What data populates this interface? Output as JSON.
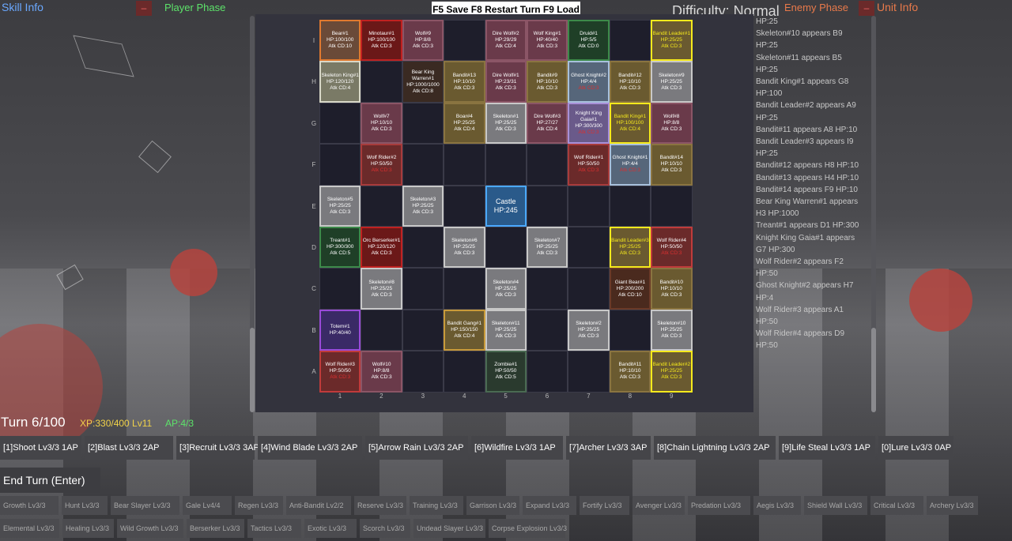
{
  "header": {
    "skill_info": "Skill Info",
    "player_phase": "Player Phase",
    "save_bar": "F5 Save F8 Restart Turn F9 Load",
    "difficulty": "Difficulty: Normal",
    "enemy_phase": "Enemy Phase",
    "unit_info": "Unit Info",
    "minimize_glyph": "–"
  },
  "board": {
    "rows": [
      "I",
      "H",
      "G",
      "F",
      "E",
      "D",
      "C",
      "B",
      "A"
    ],
    "cols": [
      "1",
      "2",
      "3",
      "4",
      "5",
      "6",
      "7",
      "8",
      "9"
    ],
    "cells": [
      {
        "id": "I1",
        "name": "Bear#1",
        "hp": "HP:100/100",
        "atk": "Atk CD:10",
        "bg": "#6a4a38",
        "border": "#e0792f"
      },
      {
        "id": "I2",
        "name": "Minotaur#1",
        "hp": "HP:100/100",
        "atk": "Atk CD:3",
        "bg": "#6b1818",
        "border": "#c02121"
      },
      {
        "id": "I3",
        "name": "Wolf#9",
        "hp": "HP:8/8",
        "atk": "Atk CD:3",
        "bg": "#6a3a4a",
        "border": "#8b5566"
      },
      {
        "id": "I4",
        "name": "",
        "hp": "",
        "atk": "",
        "bg": "#1e1e2b",
        "border": "#3a3a48"
      },
      {
        "id": "I5",
        "name": "Dire Wolf#2",
        "hp": "HP:29/29",
        "atk": "Atk CD:4",
        "bg": "#6a3a4a",
        "border": "#8b5566"
      },
      {
        "id": "I6",
        "name": "Wolf King#1",
        "hp": "HP:40/40",
        "atk": "Atk CD:3",
        "bg": "#6a3a4a",
        "border": "#8b5566"
      },
      {
        "id": "I7",
        "name": "Druid#1",
        "hp": "HP:5/5",
        "atk": "Atk CD:0",
        "bg": "#1f3f27",
        "border": "#3d8a4a"
      },
      {
        "id": "I8",
        "name": "",
        "hp": "",
        "atk": "",
        "bg": "#1e1e2b",
        "border": "#3a3a48"
      },
      {
        "id": "I9",
        "name": "Bandit Leader#1",
        "hp": "HP:25/25",
        "atk": "Atk CD:3",
        "bg": "#6a5a30",
        "border": "#f6ea1c",
        "yellow": true
      },
      {
        "id": "H1",
        "name": "Skeleton King#1",
        "hp": "HP:120/120",
        "atk": "Atk CD:4",
        "bg": "#7a7a66",
        "border": "#d8d8c8"
      },
      {
        "id": "H2",
        "name": "",
        "hp": "",
        "atk": "",
        "bg": "#1e1e2b",
        "border": "#3a3a48"
      },
      {
        "id": "H3",
        "name": "Bear King Warren#1",
        "hp": "HP:1000/1000",
        "atk": "Atk CD:8",
        "bg": "#3a2a22",
        "border": "#3a3a48"
      },
      {
        "id": "H4",
        "name": "Bandit#13",
        "hp": "HP:10/10",
        "atk": "Atk CD:3",
        "bg": "#6a5a30",
        "border": "#8a7440"
      },
      {
        "id": "H5",
        "name": "Dire Wolf#1",
        "hp": "HP:23/31",
        "atk": "Atk CD:3",
        "bg": "#6a3a4a",
        "border": "#8b5566"
      },
      {
        "id": "H6",
        "name": "Bandit#9",
        "hp": "HP:10/10",
        "atk": "Atk CD:3",
        "bg": "#6a5a30",
        "border": "#8a7440"
      },
      {
        "id": "H7",
        "name": "Ghost Knight#2",
        "hp": "HP:4/4",
        "atk": "",
        "bg": "#56667a",
        "border": "#a8c0dc",
        "red": "Atk CD:3"
      },
      {
        "id": "H8",
        "name": "Bandit#12",
        "hp": "HP:10/10",
        "atk": "Atk CD:3",
        "bg": "#6a5a30",
        "border": "#8a7440"
      },
      {
        "id": "H9",
        "name": "Skeleton#9",
        "hp": "HP:25/25",
        "atk": "Atk CD:3",
        "bg": "#7a7a7e",
        "border": "#c8c8c8"
      },
      {
        "id": "G1",
        "name": "",
        "hp": "",
        "atk": "",
        "bg": "#1e1e2b",
        "border": "#3a3a48"
      },
      {
        "id": "G2",
        "name": "Wolf#7",
        "hp": "HP:10/10",
        "atk": "Atk CD:3",
        "bg": "#6a3a4a",
        "border": "#8b5566"
      },
      {
        "id": "G3",
        "name": "",
        "hp": "",
        "atk": "",
        "bg": "#1e1e2b",
        "border": "#3a3a48"
      },
      {
        "id": "G4",
        "name": "Boar#4",
        "hp": "HP:25/25",
        "atk": "Atk CD:4",
        "bg": "#6a5a30",
        "border": "#8a7440"
      },
      {
        "id": "G5",
        "name": "Skeleton#1",
        "hp": "HP:25/25",
        "atk": "Atk CD:3",
        "bg": "#7a7a7e",
        "border": "#c8c8c8"
      },
      {
        "id": "G6",
        "name": "Dire Wolf#3",
        "hp": "HP:27/27",
        "atk": "Atk CD:4",
        "bg": "#6a3a4a",
        "border": "#8b5566"
      },
      {
        "id": "G7",
        "name": "Knight King Gaia#1",
        "hp": "HP:300/300",
        "atk": "",
        "bg": "#6a5a8a",
        "border": "#a890d8",
        "red": "Atk CD:3"
      },
      {
        "id": "G8",
        "name": "Bandit King#1",
        "hp": "HP:100/100",
        "atk": "Atk CD:4",
        "bg": "#6a5a30",
        "border": "#f6ea1c",
        "yellow": true
      },
      {
        "id": "G9",
        "name": "Wolf#8",
        "hp": "HP:8/8",
        "atk": "Atk CD:3",
        "bg": "#6a3a4a",
        "border": "#8b5566"
      },
      {
        "id": "F1",
        "name": "",
        "hp": "",
        "atk": "",
        "bg": "#1e1e2b",
        "border": "#3a3a48"
      },
      {
        "id": "F2",
        "name": "Wolf Rider#2",
        "hp": "HP:50/50",
        "atk": "",
        "bg": "#6b2a2a",
        "border": "#a83b3b",
        "red": "Atk CD:3"
      },
      {
        "id": "F3",
        "name": "",
        "hp": "",
        "atk": "",
        "bg": "#1e1e2b",
        "border": "#3a3a48"
      },
      {
        "id": "F4",
        "name": "",
        "hp": "",
        "atk": "",
        "bg": "#1e1e2b",
        "border": "#3a3a48"
      },
      {
        "id": "F5",
        "name": "",
        "hp": "",
        "atk": "",
        "bg": "#1e1e2b",
        "border": "#3a3a48"
      },
      {
        "id": "F6",
        "name": "",
        "hp": "",
        "atk": "",
        "bg": "#1e1e2b",
        "border": "#3a3a48"
      },
      {
        "id": "F7",
        "name": "Wolf Rider#1",
        "hp": "HP:50/50",
        "atk": "",
        "bg": "#6b2a2a",
        "border": "#a83b3b",
        "red": "Atk CD:3"
      },
      {
        "id": "F8",
        "name": "Ghost Knight#1",
        "hp": "HP:4/4",
        "atk": "",
        "bg": "#56667a",
        "border": "#a8c0dc",
        "red": "Atk CD:3"
      },
      {
        "id": "F9",
        "name": "Bandit#14",
        "hp": "HP:10/10",
        "atk": "Atk CD:3",
        "bg": "#6a5a30",
        "border": "#8a7440"
      },
      {
        "id": "E1",
        "name": "Skeleton#5",
        "hp": "HP:25/25",
        "atk": "Atk CD:3",
        "bg": "#7a7a7e",
        "border": "#c8c8c8"
      },
      {
        "id": "E2",
        "name": "",
        "hp": "",
        "atk": "",
        "bg": "#1e1e2b",
        "border": "#3a3a48"
      },
      {
        "id": "E3",
        "name": "Skeleton#3",
        "hp": "HP:25/25",
        "atk": "Atk CD:3",
        "bg": "#7a7a7e",
        "border": "#c8c8c8"
      },
      {
        "id": "E4",
        "name": "",
        "hp": "",
        "atk": "",
        "bg": "#1e1e2b",
        "border": "#3a3a48"
      },
      {
        "id": "E5",
        "name": "Castle",
        "hp": "HP:245",
        "atk": "",
        "bg": "#2a5a8a",
        "border": "#4aa8ff",
        "castle": true
      },
      {
        "id": "E6",
        "name": "",
        "hp": "",
        "atk": "",
        "bg": "#1e1e2b",
        "border": "#3a3a48"
      },
      {
        "id": "E7",
        "name": "",
        "hp": "",
        "atk": "",
        "bg": "#1e1e2b",
        "border": "#3a3a48"
      },
      {
        "id": "E8",
        "name": "",
        "hp": "",
        "atk": "",
        "bg": "#1e1e2b",
        "border": "#3a3a48"
      },
      {
        "id": "E9",
        "name": "",
        "hp": "",
        "atk": "",
        "bg": "#1e1e2b",
        "border": "#3a3a48"
      },
      {
        "id": "D1",
        "name": "Treant#1",
        "hp": "HP:300/300",
        "atk": "Atk CD:5",
        "bg": "#1f3f27",
        "border": "#3d8a4a"
      },
      {
        "id": "D2",
        "name": "Orc Berserker#1",
        "hp": "HP:120/120",
        "atk": "Atk CD:3",
        "bg": "#6b1818",
        "border": "#c02121"
      },
      {
        "id": "D3",
        "name": "",
        "hp": "",
        "atk": "",
        "bg": "#1e1e2b",
        "border": "#3a3a48"
      },
      {
        "id": "D4",
        "name": "Skeleton#6",
        "hp": "HP:25/25",
        "atk": "Atk CD:3",
        "bg": "#7a7a7e",
        "border": "#c8c8c8"
      },
      {
        "id": "D5",
        "name": "",
        "hp": "",
        "atk": "",
        "bg": "#1e1e2b",
        "border": "#3a3a48"
      },
      {
        "id": "D6",
        "name": "Skeleton#7",
        "hp": "HP:25/25",
        "atk": "Atk CD:3",
        "bg": "#7a7a7e",
        "border": "#c8c8c8"
      },
      {
        "id": "D7",
        "name": "",
        "hp": "",
        "atk": "",
        "bg": "#1e1e2b",
        "border": "#3a3a48"
      },
      {
        "id": "D8",
        "name": "Bandit Leader#3",
        "hp": "HP:25/25",
        "atk": "Atk CD:3",
        "bg": "#6a5a30",
        "border": "#f6ea1c",
        "yellow": true
      },
      {
        "id": "D9",
        "name": "Wolf Rider#4",
        "hp": "HP:50/50",
        "atk": "",
        "bg": "#6b2a2a",
        "border": "#c03b3b",
        "red": "Atk CD:3"
      },
      {
        "id": "C1",
        "name": "",
        "hp": "",
        "atk": "",
        "bg": "#1e1e2b",
        "border": "#3a3a48"
      },
      {
        "id": "C2",
        "name": "Skeleton#8",
        "hp": "HP:25/25",
        "atk": "Atk CD:3",
        "bg": "#7a7a7e",
        "border": "#c8c8c8"
      },
      {
        "id": "C3",
        "name": "",
        "hp": "",
        "atk": "",
        "bg": "#1e1e2b",
        "border": "#3a3a48"
      },
      {
        "id": "C4",
        "name": "",
        "hp": "",
        "atk": "",
        "bg": "#1e1e2b",
        "border": "#3a3a48"
      },
      {
        "id": "C5",
        "name": "Skeleton#4",
        "hp": "HP:25/25",
        "atk": "Atk CD:3",
        "bg": "#7a7a7e",
        "border": "#c8c8c8"
      },
      {
        "id": "C6",
        "name": "",
        "hp": "",
        "atk": "",
        "bg": "#1e1e2b",
        "border": "#3a3a48"
      },
      {
        "id": "C7",
        "name": "",
        "hp": "",
        "atk": "",
        "bg": "#1e1e2b",
        "border": "#3a3a48"
      },
      {
        "id": "C8",
        "name": "Giant Bear#1",
        "hp": "HP:200/200",
        "atk": "Atk CD:10",
        "bg": "#4a2a1e",
        "border": "#6a3a28"
      },
      {
        "id": "C9",
        "name": "Bandit#10",
        "hp": "HP:10/10",
        "atk": "Atk CD:3",
        "bg": "#6a5a30",
        "border": "#8a7440"
      },
      {
        "id": "B1",
        "name": "Totem#1",
        "hp": "HP:40/40",
        "atk": "",
        "bg": "#3a2a66",
        "border": "#9a4ad8"
      },
      {
        "id": "B2",
        "name": "",
        "hp": "",
        "atk": "",
        "bg": "#1e1e2b",
        "border": "#3a3a48"
      },
      {
        "id": "B3",
        "name": "",
        "hp": "",
        "atk": "",
        "bg": "#1e1e2b",
        "border": "#3a3a48"
      },
      {
        "id": "B4",
        "name": "Bandit Gang#1",
        "hp": "HP:150/150",
        "atk": "Atk CD:4",
        "bg": "#6a5a30",
        "border": "#c89a3a"
      },
      {
        "id": "B5",
        "name": "Skeleton#11",
        "hp": "HP:25/25",
        "atk": "Atk CD:3",
        "bg": "#7a7a7e",
        "border": "#c8c8c8"
      },
      {
        "id": "B6",
        "name": "",
        "hp": "",
        "atk": "",
        "bg": "#1e1e2b",
        "border": "#3a3a48"
      },
      {
        "id": "B7",
        "name": "Skeleton#2",
        "hp": "HP:25/25",
        "atk": "Atk CD:3",
        "bg": "#7a7a7e",
        "border": "#c8c8c8"
      },
      {
        "id": "B8",
        "name": "",
        "hp": "",
        "atk": "",
        "bg": "#1e1e2b",
        "border": "#3a3a48"
      },
      {
        "id": "B9",
        "name": "Skeleton#10",
        "hp": "HP:25/25",
        "atk": "Atk CD:3",
        "bg": "#7a7a7e",
        "border": "#c8c8c8"
      },
      {
        "id": "A1",
        "name": "Wolf Rider#3",
        "hp": "HP:50/50",
        "atk": "",
        "bg": "#6b2a2a",
        "border": "#c03b3b",
        "red": "Atk CD:3"
      },
      {
        "id": "A2",
        "name": "Wolf#10",
        "hp": "HP:8/8",
        "atk": "Atk CD:3",
        "bg": "#6a3a4a",
        "border": "#8b5566"
      },
      {
        "id": "A3",
        "name": "",
        "hp": "",
        "atk": "",
        "bg": "#1e1e2b",
        "border": "#3a3a48"
      },
      {
        "id": "A4",
        "name": "",
        "hp": "",
        "atk": "",
        "bg": "#1e1e2b",
        "border": "#3a3a48"
      },
      {
        "id": "A5",
        "name": "Zombie#1",
        "hp": "HP:50/50",
        "atk": "Atk CD:5",
        "bg": "#2a3a2e",
        "border": "#4a6a52"
      },
      {
        "id": "A6",
        "name": "",
        "hp": "",
        "atk": "",
        "bg": "#1e1e2b",
        "border": "#3a3a48"
      },
      {
        "id": "A7",
        "name": "",
        "hp": "",
        "atk": "",
        "bg": "#1e1e2b",
        "border": "#3a3a48"
      },
      {
        "id": "A8",
        "name": "Bandit#11",
        "hp": "HP:10/10",
        "atk": "Atk CD:3",
        "bg": "#6a5a30",
        "border": "#8a7440"
      },
      {
        "id": "A9",
        "name": "Bandit Leader#2",
        "hp": "HP:25/25",
        "atk": "Atk CD:3",
        "bg": "#6a5a30",
        "border": "#f6ea1c",
        "yellow": true
      }
    ]
  },
  "log": [
    "HP:25",
    "Skeleton#10 appears B9 HP:25",
    "Skeleton#11 appears B5 HP:25",
    "Bandit King#1 appears G8 HP:100",
    "Bandit Leader#2 appears A9 HP:25",
    "Bandit#11 appears A8 HP:10",
    "Bandit Leader#3 appears I9 HP:25",
    "Bandit#12 appears H8 HP:10",
    "Bandit#13 appears H4 HP:10",
    "Bandit#14 appears F9 HP:10",
    "Bear King Warren#1 appears H3 HP:1000",
    "Treant#1 appears D1 HP:300",
    "Knight King Gaia#1 appears G7 HP:300",
    "Wolf Rider#2 appears F2 HP:50",
    "Ghost Knight#2 appears H7 HP:4",
    "Wolf Rider#3 appears A1 HP:50",
    "Wolf Rider#4 appears D9 HP:50"
  ],
  "status": {
    "turn": "Turn 6/100",
    "xp": "XP:330/400 Lv11",
    "ap": "AP:4/3"
  },
  "skills": [
    "[1]Shoot Lv3/3 1AP",
    "[2]Blast Lv3/3 2AP",
    "[3]Recruit Lv3/3 3AP",
    "[4]Wind Blade Lv3/3 2AP",
    "[5]Arrow Rain Lv3/3 2AP",
    "[6]Wildfire Lv3/3 1AP",
    "[7]Archer Lv3/3 3AP",
    "[8]Chain Lightning Lv3/3 2AP",
    "[9]Life Steal Lv3/3 1AP",
    "[0]Lure Lv3/3 0AP"
  ],
  "end_turn": "End Turn (Enter)",
  "passives": [
    "Growth Lv3/3",
    "Hunt Lv3/3",
    "Bear Slayer Lv3/3",
    "Gale Lv4/4",
    "Regen Lv3/3",
    "Anti-Bandit Lv2/2",
    "Reserve Lv3/3",
    "Training Lv3/3",
    "Garrison Lv3/3",
    "Expand Lv3/3",
    "Fortify Lv3/3",
    "Avenger Lv3/3",
    "Predation Lv3/3",
    "Aegis Lv3/3",
    "Shield Wall Lv3/3",
    "Critical Lv3/3",
    "Archery Lv3/3",
    "Elemental Lv3/3",
    "Healing Lv3/3",
    "Wild Growth Lv3/3",
    "Berserker Lv3/3",
    "Tactics Lv3/3",
    "Exotic Lv3/3",
    "Scorch Lv3/3",
    "Undead Slayer Lv3/3",
    "Corpse Explosion Lv3/3"
  ]
}
